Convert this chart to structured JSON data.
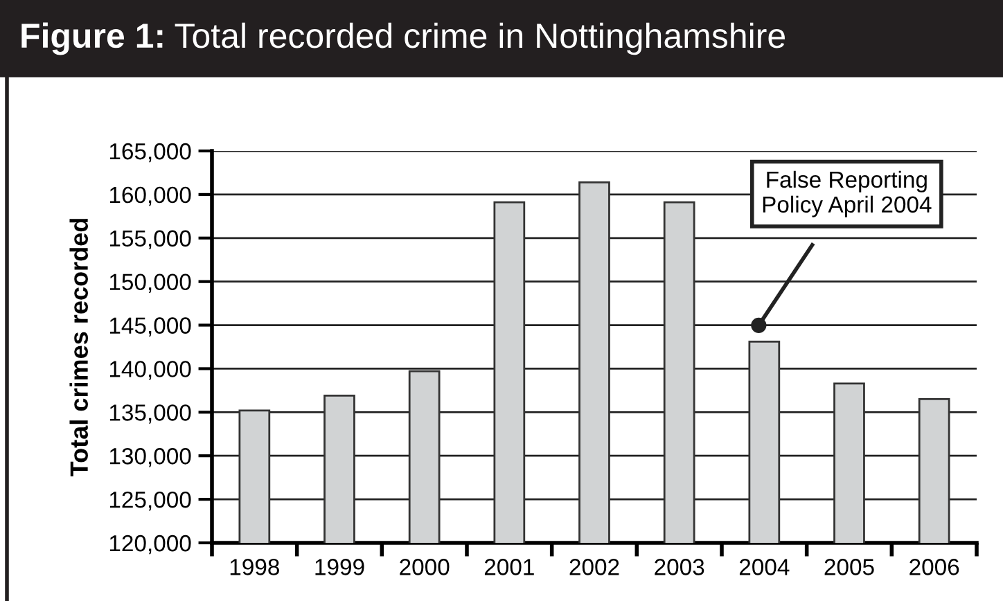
{
  "chart_data": {
    "type": "bar",
    "title": "Figure 1: Total recorded crime in Nottinghamshire",
    "ylabel": "Total crimes recorded",
    "categories": [
      "1998",
      "1999",
      "2000",
      "2001",
      "2002",
      "2003",
      "2004",
      "2005",
      "2006"
    ],
    "values": [
      135200,
      136900,
      139700,
      159100,
      161400,
      159100,
      143100,
      138300,
      136500
    ],
    "color": "#d1d3d4",
    "ylim": [
      120000,
      165000
    ],
    "yticks": [
      {
        "value": 120000,
        "label": "120,000"
      },
      {
        "value": 125000,
        "label": "125,000"
      },
      {
        "value": 130000,
        "label": "130,000"
      },
      {
        "value": 135000,
        "label": "135,000"
      },
      {
        "value": 140000,
        "label": "140,000"
      },
      {
        "value": 145000,
        "label": "145,000"
      },
      {
        "value": 150000,
        "label": "150,000"
      },
      {
        "value": 155000,
        "label": "155,000"
      },
      {
        "value": 160000,
        "label": "160,000"
      },
      {
        "value": 165000,
        "label": "165,000"
      }
    ],
    "grid": "y",
    "annotations": [
      "False Reporting\nPolicy April 2004"
    ]
  }
}
